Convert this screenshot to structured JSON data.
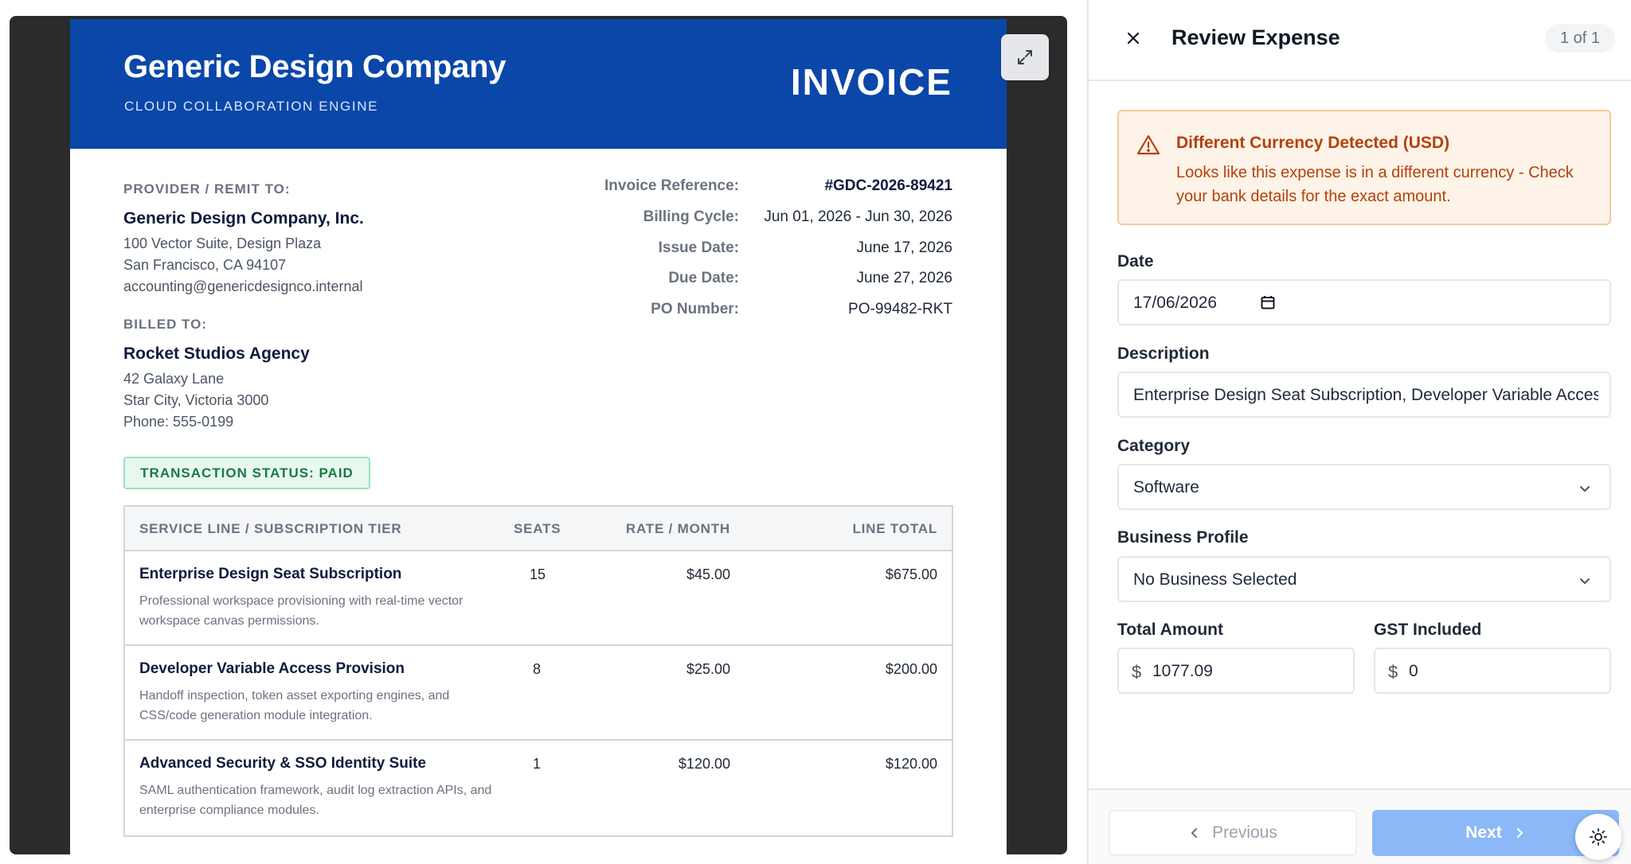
{
  "invoice": {
    "company_name": "Generic Design Company",
    "tagline": "CLOUD COLLABORATION ENGINE",
    "title": "INVOICE",
    "provider": {
      "label": "PROVIDER / REMIT TO:",
      "name": "Generic Design Company, Inc.",
      "address1": "100 Vector Suite, Design Plaza",
      "address2": "San Francisco, CA 94107",
      "email": "accounting@genericdesignco.internal"
    },
    "billed_to": {
      "label": "BILLED TO:",
      "name": "Rocket Studios Agency",
      "address1": "42 Galaxy Lane",
      "address2": "Star City, Victoria 3000",
      "phone": "Phone: 555-0199"
    },
    "meta": {
      "reference_label": "Invoice Reference:",
      "reference_value": "#GDC-2026-89421",
      "billing_cycle_label": "Billing Cycle:",
      "billing_cycle_value": "Jun 01, 2026 - Jun 30, 2026",
      "issue_date_label": "Issue Date:",
      "issue_date_value": "June 17, 2026",
      "due_date_label": "Due Date:",
      "due_date_value": "June 27, 2026",
      "po_label": "PO Number:",
      "po_value": "PO-99482-RKT"
    },
    "status": "TRANSACTION STATUS: PAID",
    "table": {
      "headers": {
        "service": "SERVICE LINE / SUBSCRIPTION TIER",
        "seats": "SEATS",
        "rate": "RATE / MONTH",
        "total": "LINE TOTAL"
      },
      "rows": [
        {
          "title": "Enterprise Design Seat Subscription",
          "description": "Professional workspace provisioning with real-time vector workspace canvas permissions.",
          "seats": "15",
          "rate": "$45.00",
          "total": "$675.00"
        },
        {
          "title": "Developer Variable Access Provision",
          "description": "Handoff inspection, token asset exporting engines, and CSS/code generation module integration.",
          "seats": "8",
          "rate": "$25.00",
          "total": "$200.00"
        },
        {
          "title": "Advanced Security & SSO Identity Suite",
          "description": "SAML authentication framework, audit log extraction APIs, and enterprise compliance modules.",
          "seats": "1",
          "rate": "$120.00",
          "total": "$120.00"
        }
      ]
    }
  },
  "panel": {
    "title": "Review Expense",
    "pagination": "1 of 1",
    "alert": {
      "title": "Different Currency Detected (USD)",
      "message": "Looks like this expense is in a different currency - Check your bank details for the exact amount."
    },
    "fields": {
      "date_label": "Date",
      "date_value": "17/06/2026",
      "description_label": "Description",
      "description_value": "Enterprise Design Seat Subscription, Developer Variable Access Provision, Advanced Security & SSO Identity Suite",
      "category_label": "Category",
      "category_value": "Software",
      "business_label": "Business Profile",
      "business_value": "No Business Selected",
      "amount_label": "Total Amount",
      "amount_currency": "$",
      "amount_value": "1077.09",
      "gst_label": "GST Included",
      "gst_currency": "$",
      "gst_value": "0"
    },
    "footer": {
      "previous_label": "Previous",
      "next_label": "Next"
    }
  },
  "icons": {
    "expand": "expand-icon",
    "close": "close-icon",
    "warning": "warning-icon",
    "calendar": "calendar-icon",
    "chevron_down": "chevron-down-icon",
    "chevron_left": "chevron-left-icon",
    "chevron_right": "chevron-right-icon",
    "theme": "sun-icon"
  },
  "colors": {
    "brand_blue": "#0a47a9",
    "alert_orange": "#b4410b",
    "status_green": "#177a44",
    "next_button": "#8cb8f7"
  }
}
